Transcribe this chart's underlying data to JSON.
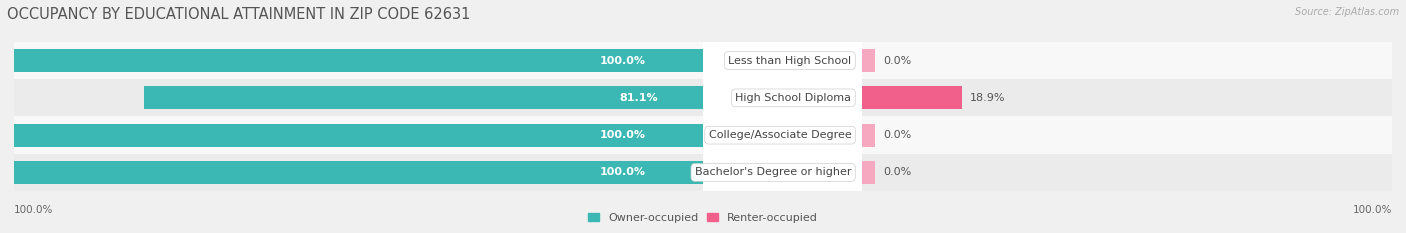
{
  "title": "OCCUPANCY BY EDUCATIONAL ATTAINMENT IN ZIP CODE 62631",
  "source": "Source: ZipAtlas.com",
  "categories": [
    "Less than High School",
    "High School Diploma",
    "College/Associate Degree",
    "Bachelor's Degree or higher"
  ],
  "owner_values": [
    100.0,
    81.1,
    100.0,
    100.0
  ],
  "renter_values": [
    0.0,
    18.9,
    0.0,
    0.0
  ],
  "owner_color": "#3bb8b3",
  "renter_color_strong": "#f0608a",
  "renter_color_weak": "#f5a8c0",
  "owner_label": "Owner-occupied",
  "renter_label": "Renter-occupied",
  "bar_height": 0.62,
  "background_color": "#f0f0f0",
  "bar_bg_color": "#e0e0e0",
  "title_fontsize": 10.5,
  "label_fontsize": 8.0,
  "value_fontsize": 8.0,
  "tick_fontsize": 7.5,
  "x_left_label": "100.0%",
  "x_right_label": "100.0%",
  "xlim": [
    0,
    100
  ],
  "row_colors": [
    "#f8f8f8",
    "#ebebeb"
  ]
}
